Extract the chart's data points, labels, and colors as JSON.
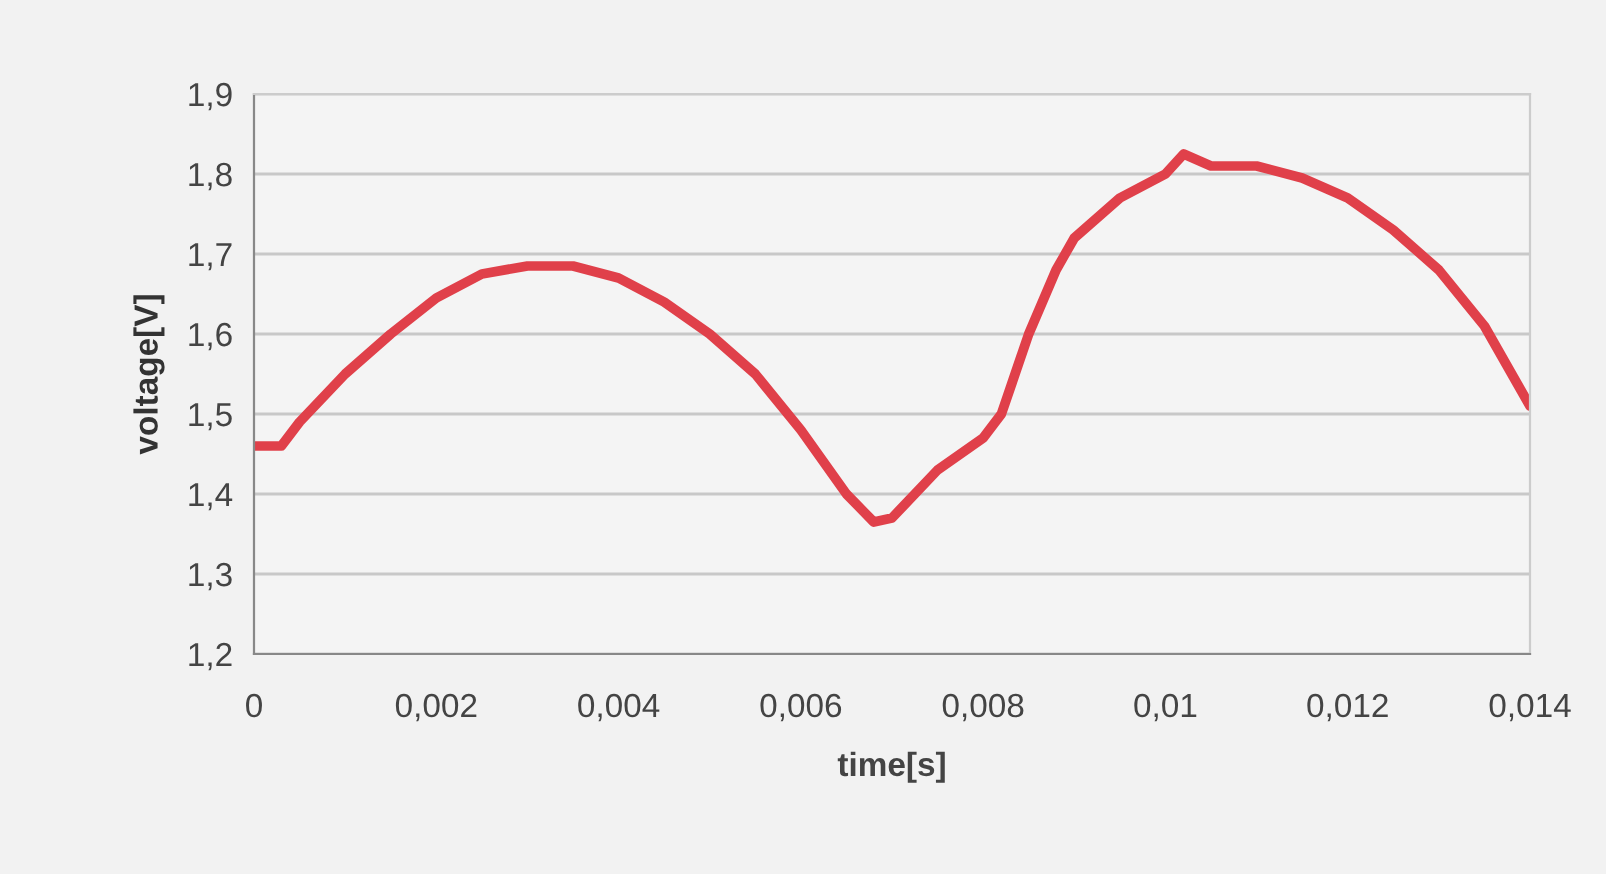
{
  "chart_data": {
    "type": "line",
    "xlabel": "time[s]",
    "ylabel": "voltage[V]",
    "x": [
      0,
      0.0003,
      0.0005,
      0.001,
      0.0015,
      0.002,
      0.0025,
      0.003,
      0.0035,
      0.004,
      0.0045,
      0.005,
      0.0055,
      0.006,
      0.0065,
      0.0068,
      0.007,
      0.0075,
      0.008,
      0.0082,
      0.0085,
      0.0088,
      0.009,
      0.0095,
      0.01,
      0.0102,
      0.0105,
      0.011,
      0.0115,
      0.012,
      0.0125,
      0.013,
      0.0135,
      0.014
    ],
    "series": [
      {
        "color": "#e0404a",
        "values": [
          1.46,
          1.46,
          1.49,
          1.55,
          1.6,
          1.645,
          1.675,
          1.685,
          1.685,
          1.67,
          1.64,
          1.6,
          1.55,
          1.48,
          1.4,
          1.365,
          1.37,
          1.43,
          1.47,
          1.5,
          1.6,
          1.68,
          1.72,
          1.77,
          1.8,
          1.825,
          1.81,
          1.81,
          1.795,
          1.77,
          1.73,
          1.68,
          1.61,
          1.51
        ]
      }
    ],
    "xlim": [
      0,
      0.014
    ],
    "ylim": [
      1.2,
      1.9
    ],
    "xticks": [
      0,
      {
        "value": 0.002,
        "label": "0,002"
      },
      {
        "value": 0.004,
        "label": "0,004"
      },
      {
        "value": 0.006,
        "label": "0,006"
      },
      {
        "value": 0.008,
        "label": "0,008"
      },
      {
        "value": 0.01,
        "label": "0,01"
      },
      {
        "value": 0.012,
        "label": "0,012"
      },
      {
        "value": 0.014,
        "label": "0,014"
      }
    ],
    "yticks": [
      {
        "value": 1.2,
        "label": "1,2"
      },
      {
        "value": 1.3,
        "label": "1,3"
      },
      {
        "value": 1.4,
        "label": "1,4"
      },
      {
        "value": 1.5,
        "label": "1,5"
      },
      {
        "value": 1.6,
        "label": "1,6"
      },
      {
        "value": 1.7,
        "label": "1,7"
      },
      {
        "value": 1.8,
        "label": "1,8"
      },
      {
        "value": 1.9,
        "label": "1,9"
      }
    ],
    "grid": "y",
    "marker": "none",
    "line_style": "solid"
  }
}
